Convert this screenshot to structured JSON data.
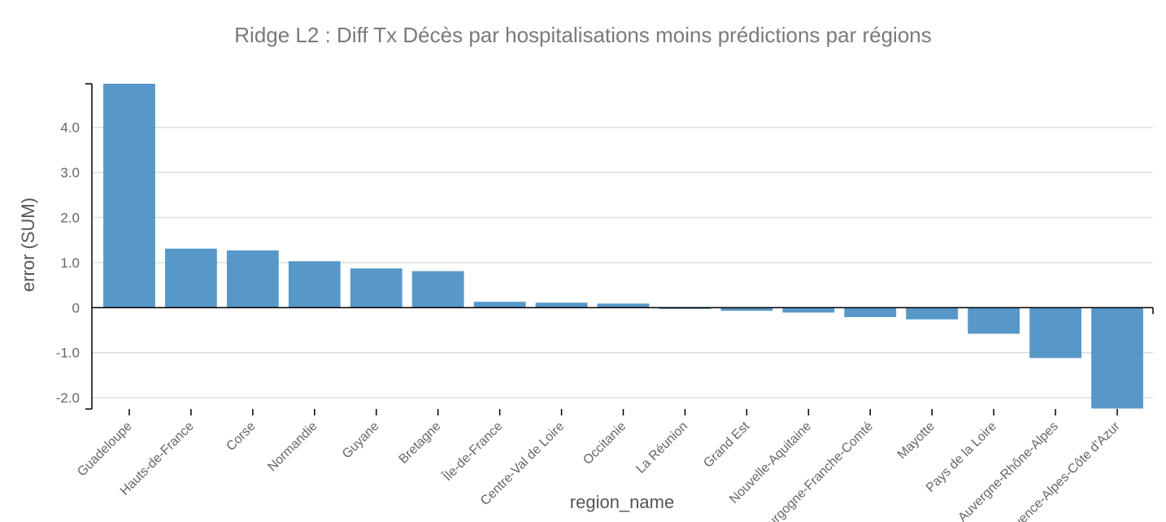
{
  "chart_data": {
    "type": "bar",
    "title": "Ridge L2 : Diff Tx Décès par hospitalisations moins prédictions par régions",
    "xlabel": "region_name",
    "ylabel": "error (SUM)",
    "ylim": [
      -2.25,
      4.97
    ],
    "yticks": [
      -2.0,
      -1.0,
      0,
      1.0,
      2.0,
      3.0,
      4.0
    ],
    "ytick_labels": [
      "-2.0",
      "-1.0",
      "0",
      "1.0",
      "2.0",
      "3.0",
      "4.0"
    ],
    "grid": true,
    "bar_color": "#4a90c4",
    "categories": [
      "Guadeloupe",
      "Hauts-de-France",
      "Corse",
      "Normandie",
      "Guyane",
      "Bretagne",
      "Île-de-France",
      "Centre-Val de Loire",
      "Occitanie",
      "La Réunion",
      "Grand Est",
      "Nouvelle-Aquitaine",
      "Bourgogne-Franche-Comté",
      "Mayotte",
      "Pays de la Loire",
      "Auvergne-Rhône-Alpes",
      "Provence-Alpes-Côte d'Azur"
    ],
    "values": [
      4.97,
      1.31,
      1.27,
      1.03,
      0.87,
      0.81,
      0.13,
      0.11,
      0.09,
      -0.03,
      -0.07,
      -0.11,
      -0.21,
      -0.26,
      -0.58,
      -1.12,
      -2.24
    ]
  }
}
